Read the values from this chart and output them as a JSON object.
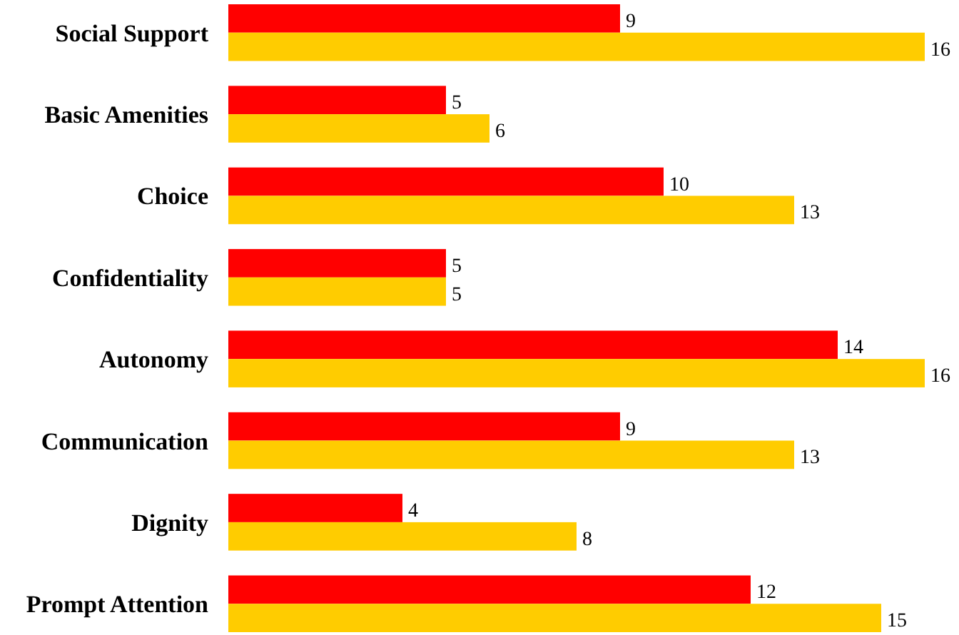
{
  "chart_data": {
    "type": "bar",
    "orientation": "horizontal",
    "categories": [
      "Social Support",
      "Basic Amenities",
      "Choice",
      "Confidentiality",
      "Autonomy",
      "Communication",
      "Dignity",
      "Prompt Attention"
    ],
    "series": [
      {
        "color": "#ff0000",
        "values": [
          9,
          5,
          10,
          5,
          14,
          9,
          4,
          12
        ]
      },
      {
        "color": "#ffcc00",
        "values": [
          16,
          6,
          13,
          5,
          16,
          13,
          8,
          15
        ]
      }
    ],
    "data_labels": true
  }
}
